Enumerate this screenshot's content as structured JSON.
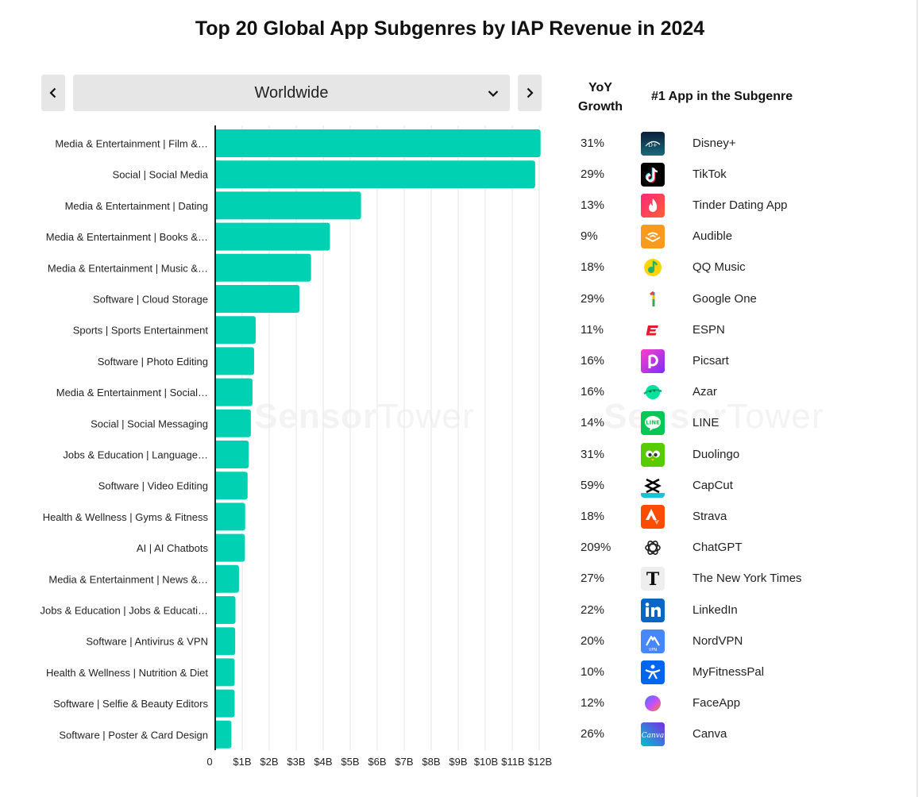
{
  "title": "Top 20 Global App Subgenres by IAP Revenue in 2024",
  "region": {
    "selected": "Worldwide"
  },
  "columns": {
    "yoy": [
      "YoY",
      "Growth"
    ],
    "top_app": "#1  App in the Subgenre"
  },
  "watermark": {
    "strong": "Sensor",
    "light": "Tower"
  },
  "colors": {
    "bar": "#00d1b2",
    "grid": "#e6e6e6",
    "axis": "#222222"
  },
  "chart_data": {
    "type": "bar",
    "orientation": "horizontal",
    "title": "Top 20 Global App Subgenres by IAP Revenue in 2024",
    "xlim": [
      0,
      12.6
    ],
    "xticks": [
      {
        "value": 0,
        "label": "0"
      },
      {
        "value": 1,
        "label": "$1B"
      },
      {
        "value": 2,
        "label": "$2B"
      },
      {
        "value": 3,
        "label": "$3B"
      },
      {
        "value": 4,
        "label": "$4B"
      },
      {
        "value": 5,
        "label": "$5B"
      },
      {
        "value": 6,
        "label": "$6B"
      },
      {
        "value": 7,
        "label": "$7B"
      },
      {
        "value": 8,
        "label": "$8B"
      },
      {
        "value": 9,
        "label": "$9B"
      },
      {
        "value": 10,
        "label": "$10B"
      },
      {
        "value": 11,
        "label": "$11B"
      },
      {
        "value": 12,
        "label": "$12B"
      }
    ],
    "grid": true,
    "categories": [
      "Media & Entertainment | Film &…",
      "Social | Social Media",
      "Media & Entertainment | Dating",
      "Media & Entertainment | Books &…",
      "Media & Entertainment | Music &…",
      "Software | Cloud Storage",
      "Sports | Sports Entertainment",
      "Software | Photo Editing",
      "Media & Entertainment | Social…",
      "Social | Social Messaging",
      "Jobs & Education | Language…",
      "Software | Video Editing",
      "Health & Wellness | Gyms & Fitness",
      "AI | AI Chatbots",
      "Media & Entertainment | News &…",
      "Jobs & Education | Jobs & Educati…",
      "Software | Antivirus & VPN",
      "Health & Wellness | Nutrition & Diet",
      "Software | Selfie & Beauty Editors",
      "Software | Poster & Card Design"
    ],
    "values": [
      12.05,
      11.85,
      5.4,
      4.25,
      3.55,
      3.12,
      1.5,
      1.44,
      1.38,
      1.32,
      1.24,
      1.2,
      1.11,
      1.1,
      0.88,
      0.75,
      0.74,
      0.72,
      0.72,
      0.6
    ]
  },
  "rows": [
    {
      "yoy": "31%",
      "app": "Disney+",
      "icon": "disney-plus-icon"
    },
    {
      "yoy": "29%",
      "app": "TikTok",
      "icon": "tiktok-icon"
    },
    {
      "yoy": "13%",
      "app": "Tinder Dating App",
      "icon": "tinder-icon"
    },
    {
      "yoy": "9%",
      "app": "Audible",
      "icon": "audible-icon"
    },
    {
      "yoy": "18%",
      "app": "QQ Music",
      "icon": "qq-music-icon"
    },
    {
      "yoy": "29%",
      "app": "Google One",
      "icon": "google-one-icon"
    },
    {
      "yoy": "11%",
      "app": "ESPN",
      "icon": "espn-icon"
    },
    {
      "yoy": "16%",
      "app": "Picsart",
      "icon": "picsart-icon"
    },
    {
      "yoy": "16%",
      "app": "Azar",
      "icon": "azar-icon"
    },
    {
      "yoy": "14%",
      "app": "LINE",
      "icon": "line-icon"
    },
    {
      "yoy": "31%",
      "app": "Duolingo",
      "icon": "duolingo-icon"
    },
    {
      "yoy": "59%",
      "app": "CapCut",
      "icon": "capcut-icon"
    },
    {
      "yoy": "18%",
      "app": "Strava",
      "icon": "strava-icon"
    },
    {
      "yoy": "209%",
      "app": "ChatGPT",
      "icon": "chatgpt-icon"
    },
    {
      "yoy": "27%",
      "app": "The New York Times",
      "icon": "nyt-icon"
    },
    {
      "yoy": "22%",
      "app": "LinkedIn",
      "icon": "linkedin-icon"
    },
    {
      "yoy": "20%",
      "app": "NordVPN",
      "icon": "nordvpn-icon"
    },
    {
      "yoy": "10%",
      "app": "MyFitnessPal",
      "icon": "myfitnesspal-icon"
    },
    {
      "yoy": "12%",
      "app": "FaceApp",
      "icon": "faceapp-icon"
    },
    {
      "yoy": "26%",
      "app": "Canva",
      "icon": "canva-icon"
    }
  ]
}
